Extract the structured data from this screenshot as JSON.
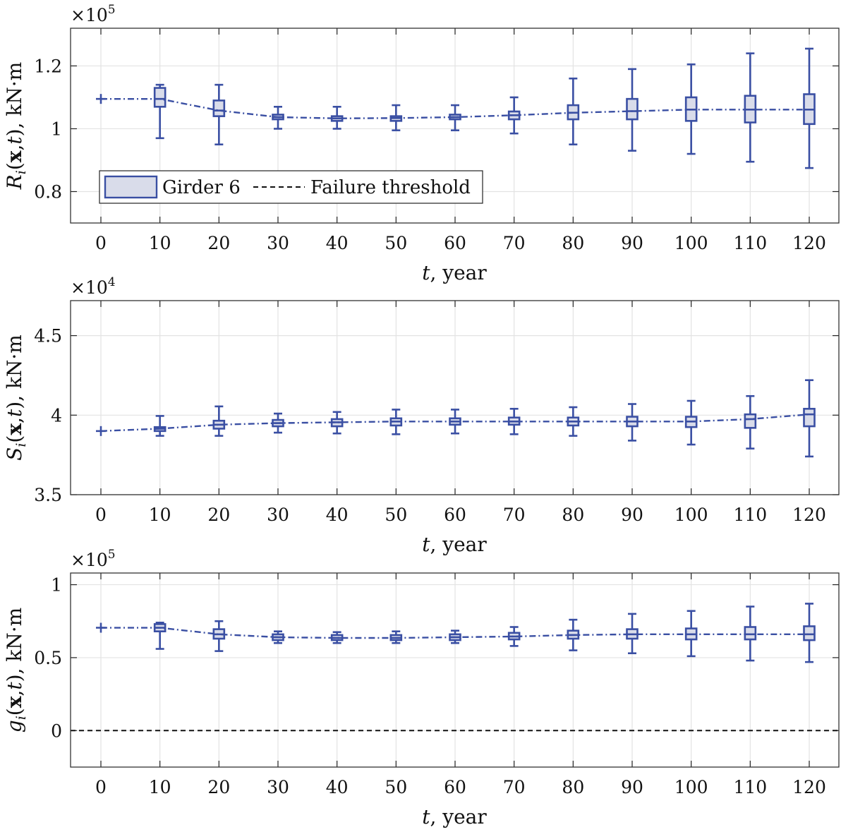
{
  "figure": {
    "x_ticks": [
      "0",
      "10",
      "20",
      "30",
      "40",
      "50",
      "60",
      "70",
      "80",
      "90",
      "100",
      "110",
      "120"
    ],
    "legend": {
      "box_label": "Girder 6",
      "threshold_label": "Failure threshold"
    },
    "colors": {
      "series": "#3a4fa3",
      "box_fill": "#d9dcea",
      "threshold": "#111111",
      "grid": "#e3e3e3"
    }
  },
  "chart_data": [
    {
      "type": "box",
      "ylabel": "Ri(x,t), kN·m",
      "xlabel": "t, year",
      "multiplier": "×10^5",
      "ylim": [
        0.7,
        1.32
      ],
      "yticks": [
        "0.8",
        "1",
        "1.2"
      ],
      "grid": true,
      "legend_position": "bottom-left",
      "x": [
        0,
        10,
        20,
        30,
        40,
        50,
        60,
        70,
        80,
        90,
        100,
        110,
        120
      ],
      "median": [
        1.095,
        1.095,
        1.058,
        1.037,
        1.033,
        1.034,
        1.037,
        1.043,
        1.051,
        1.056,
        1.061,
        1.061,
        1.061
      ],
      "q1": [
        1.095,
        1.07,
        1.04,
        1.03,
        1.025,
        1.025,
        1.03,
        1.03,
        1.03,
        1.03,
        1.025,
        1.02,
        1.015
      ],
      "q3": [
        1.095,
        1.13,
        1.09,
        1.045,
        1.04,
        1.04,
        1.045,
        1.055,
        1.075,
        1.095,
        1.1,
        1.105,
        1.11
      ],
      "whisker_low": [
        1.095,
        0.97,
        0.95,
        1.0,
        1.0,
        0.995,
        0.995,
        0.985,
        0.95,
        0.93,
        0.92,
        0.895,
        0.875
      ],
      "whisker_high": [
        1.095,
        1.14,
        1.14,
        1.07,
        1.07,
        1.075,
        1.075,
        1.1,
        1.16,
        1.19,
        1.205,
        1.24,
        1.255
      ]
    },
    {
      "type": "box",
      "ylabel": "Si(x,t), kN·m",
      "xlabel": "t, year",
      "multiplier": "×10^4",
      "ylim": [
        3.5,
        4.72
      ],
      "yticks": [
        "3.5",
        "4",
        "4.5"
      ],
      "grid": true,
      "x": [
        0,
        10,
        20,
        30,
        40,
        50,
        60,
        70,
        80,
        90,
        100,
        110,
        120
      ],
      "median": [
        3.9,
        3.915,
        3.94,
        3.95,
        3.955,
        3.96,
        3.96,
        3.96,
        3.96,
        3.96,
        3.96,
        3.975,
        4.005
      ],
      "q1": [
        3.9,
        3.9,
        3.915,
        3.93,
        3.93,
        3.935,
        3.94,
        3.94,
        3.935,
        3.93,
        3.925,
        3.92,
        3.93
      ],
      "q3": [
        3.9,
        3.925,
        3.965,
        3.97,
        3.975,
        3.98,
        3.98,
        3.985,
        3.985,
        3.99,
        3.99,
        4.005,
        4.04
      ],
      "whisker_low": [
        3.9,
        3.87,
        3.87,
        3.89,
        3.885,
        3.88,
        3.885,
        3.88,
        3.87,
        3.84,
        3.815,
        3.79,
        3.74
      ],
      "whisker_high": [
        3.9,
        3.995,
        4.055,
        4.01,
        4.02,
        4.035,
        4.035,
        4.04,
        4.05,
        4.07,
        4.09,
        4.12,
        4.22
      ]
    },
    {
      "type": "box",
      "ylabel": "gi(x,t), kN·m",
      "xlabel": "t, year",
      "multiplier": "×10^5",
      "ylim": [
        -0.25,
        1.08
      ],
      "yticks": [
        "0",
        "0.5",
        "1"
      ],
      "grid": true,
      "failure_threshold": 0,
      "x": [
        0,
        10,
        20,
        30,
        40,
        50,
        60,
        70,
        80,
        90,
        100,
        110,
        120
      ],
      "median": [
        0.705,
        0.705,
        0.66,
        0.64,
        0.635,
        0.635,
        0.64,
        0.645,
        0.655,
        0.66,
        0.66,
        0.66,
        0.66
      ],
      "q1": [
        0.705,
        0.68,
        0.63,
        0.62,
        0.62,
        0.62,
        0.62,
        0.625,
        0.63,
        0.63,
        0.625,
        0.625,
        0.62
      ],
      "q3": [
        0.705,
        0.73,
        0.695,
        0.66,
        0.655,
        0.655,
        0.66,
        0.67,
        0.685,
        0.695,
        0.7,
        0.71,
        0.715
      ],
      "whisker_low": [
        0.705,
        0.56,
        0.545,
        0.6,
        0.6,
        0.6,
        0.6,
        0.58,
        0.55,
        0.53,
        0.51,
        0.48,
        0.47
      ],
      "whisker_high": [
        0.705,
        0.74,
        0.75,
        0.68,
        0.675,
        0.68,
        0.685,
        0.71,
        0.76,
        0.8,
        0.82,
        0.85,
        0.87
      ]
    }
  ]
}
